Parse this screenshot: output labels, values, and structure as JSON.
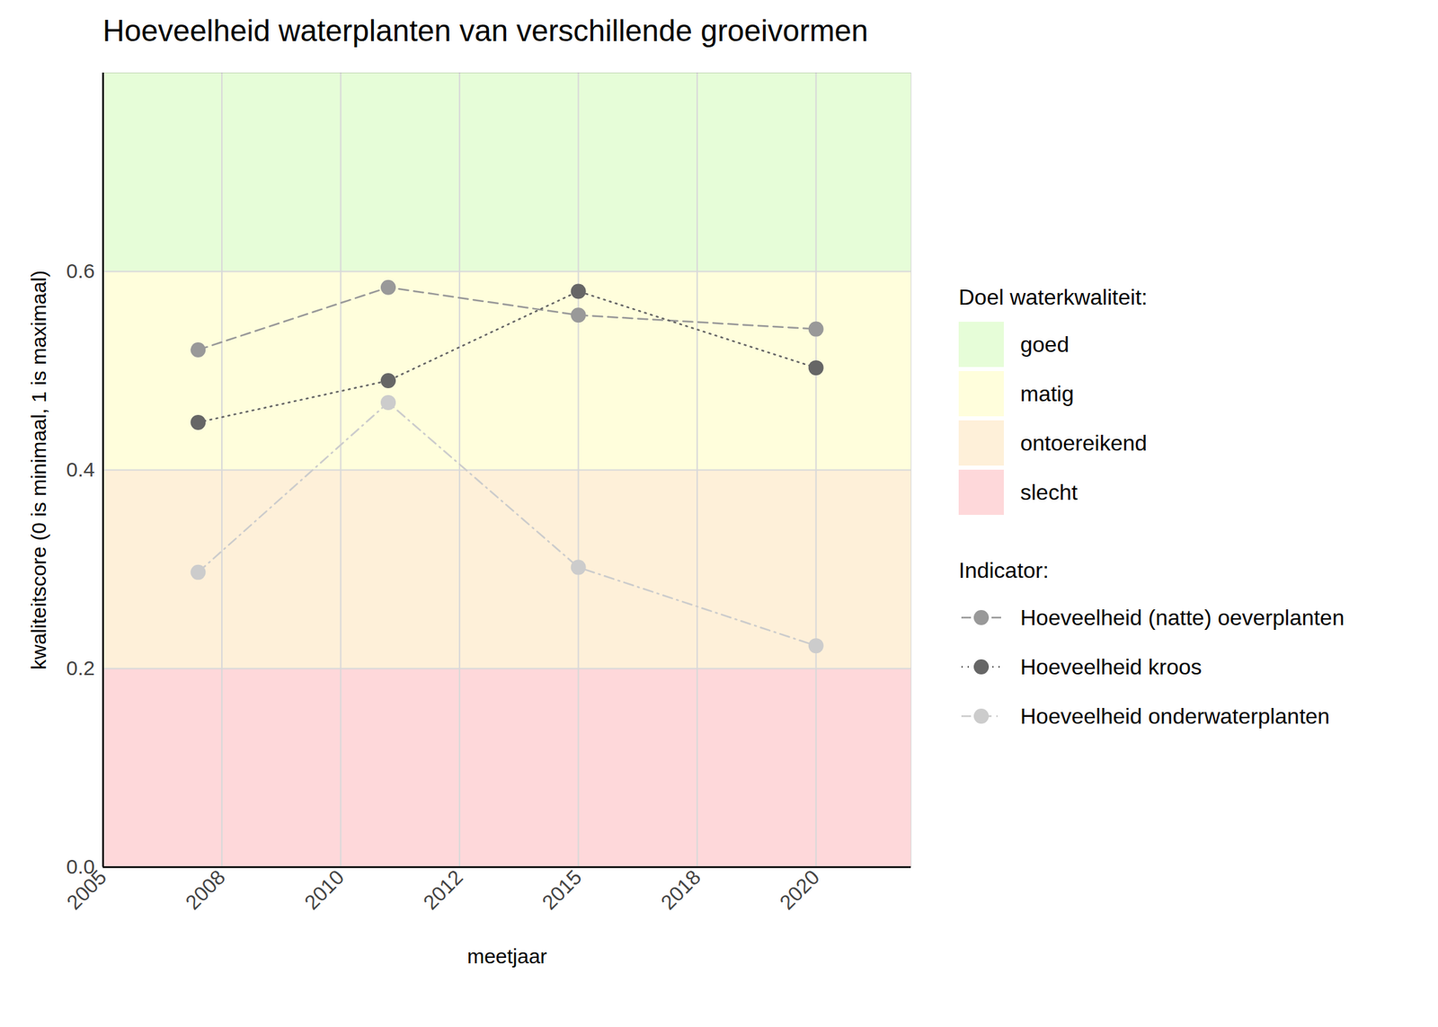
{
  "chart_data": {
    "type": "line",
    "title": "Hoeveelheid waterplanten van verschillende groeivormen",
    "x_label": "meetjaar",
    "y_label": "kwaliteitscore (0 is minimaal, 1 is maximaal)",
    "x": [
      2007,
      2011,
      2015,
      2020
    ],
    "series": [
      {
        "name": "Hoeveelheid (natte) oeverplanten",
        "color": "#999999",
        "marker": "circle",
        "line_style": "dashed",
        "values": [
          0.521,
          0.584,
          0.556,
          0.542
        ]
      },
      {
        "name": "Hoeveelheid kroos",
        "color": "#666666",
        "marker": "circle",
        "line_style": "dotted",
        "values": [
          0.448,
          0.49,
          0.58,
          0.503
        ]
      },
      {
        "name": "Hoeveelheid onderwaterplanten",
        "color": "#cccccc",
        "marker": "circle",
        "line_style": "dashdot",
        "values": [
          0.297,
          0.468,
          0.302,
          0.223
        ]
      }
    ],
    "series_legend_title": "Indicator:",
    "band_legend_title": "Doel waterkwaliteit:",
    "bands": [
      {
        "name": "goed",
        "color": "#e6fdd8",
        "from": 0.6,
        "to": 0.8
      },
      {
        "name": "matig",
        "color": "#fffedc",
        "from": 0.4,
        "to": 0.6
      },
      {
        "name": "ontoereikend",
        "color": "#fef0d9",
        "from": 0.2,
        "to": 0.4
      },
      {
        "name": "slecht",
        "color": "#fed8da",
        "from": 0.0,
        "to": 0.2
      }
    ],
    "xlim": [
      2005,
      2022
    ],
    "xticks": [
      2005,
      {
        "value": 2007.5,
        "label": "2008"
      },
      2010,
      {
        "value": 2012.5,
        "label": "2012"
      },
      2015,
      {
        "value": 2017.5,
        "label": "2018"
      },
      2020
    ],
    "ylim": [
      0,
      0.8
    ],
    "yticks": [
      {
        "value": 0,
        "label": "0.0"
      },
      {
        "value": 0.2,
        "label": "0.2"
      },
      {
        "value": 0.4,
        "label": "0.4"
      },
      {
        "value": 0.6,
        "label": "0.6"
      }
    ],
    "grid": true
  }
}
